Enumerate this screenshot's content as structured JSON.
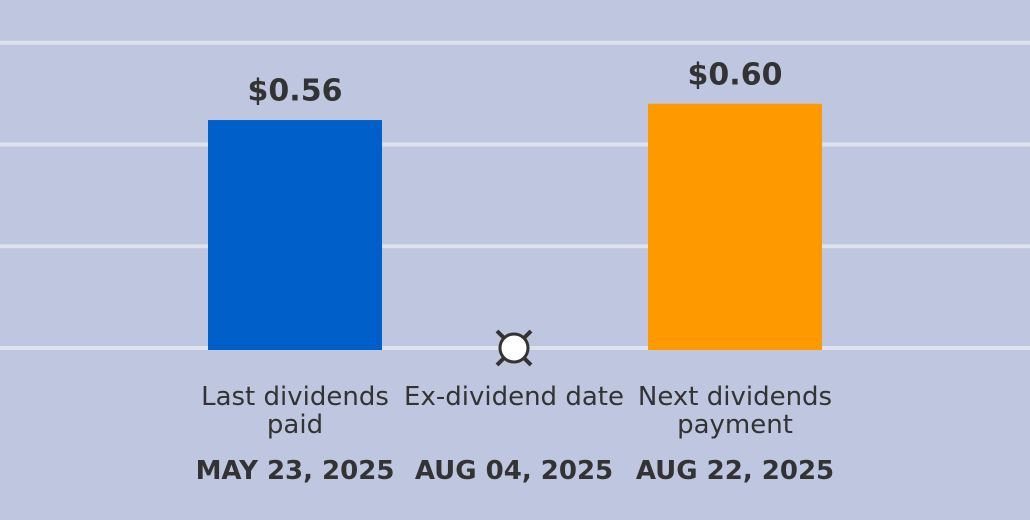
{
  "chart_data": {
    "type": "bar",
    "categories": [
      "Last dividends paid",
      "Ex-dividend date",
      "Next dividends payment"
    ],
    "dates": [
      "MAY 23, 2025",
      "AUG 04, 2025",
      "AUG 22, 2025"
    ],
    "values": [
      0.56,
      null,
      0.6
    ],
    "value_labels": [
      "$0.56",
      null,
      "$0.60"
    ],
    "colors": [
      "#005fc9",
      null,
      "#ff9900"
    ],
    "ylim": [
      0,
      0.85
    ],
    "yticks": [
      0,
      0.25,
      0.5,
      0.75
    ],
    "grid": true
  }
}
